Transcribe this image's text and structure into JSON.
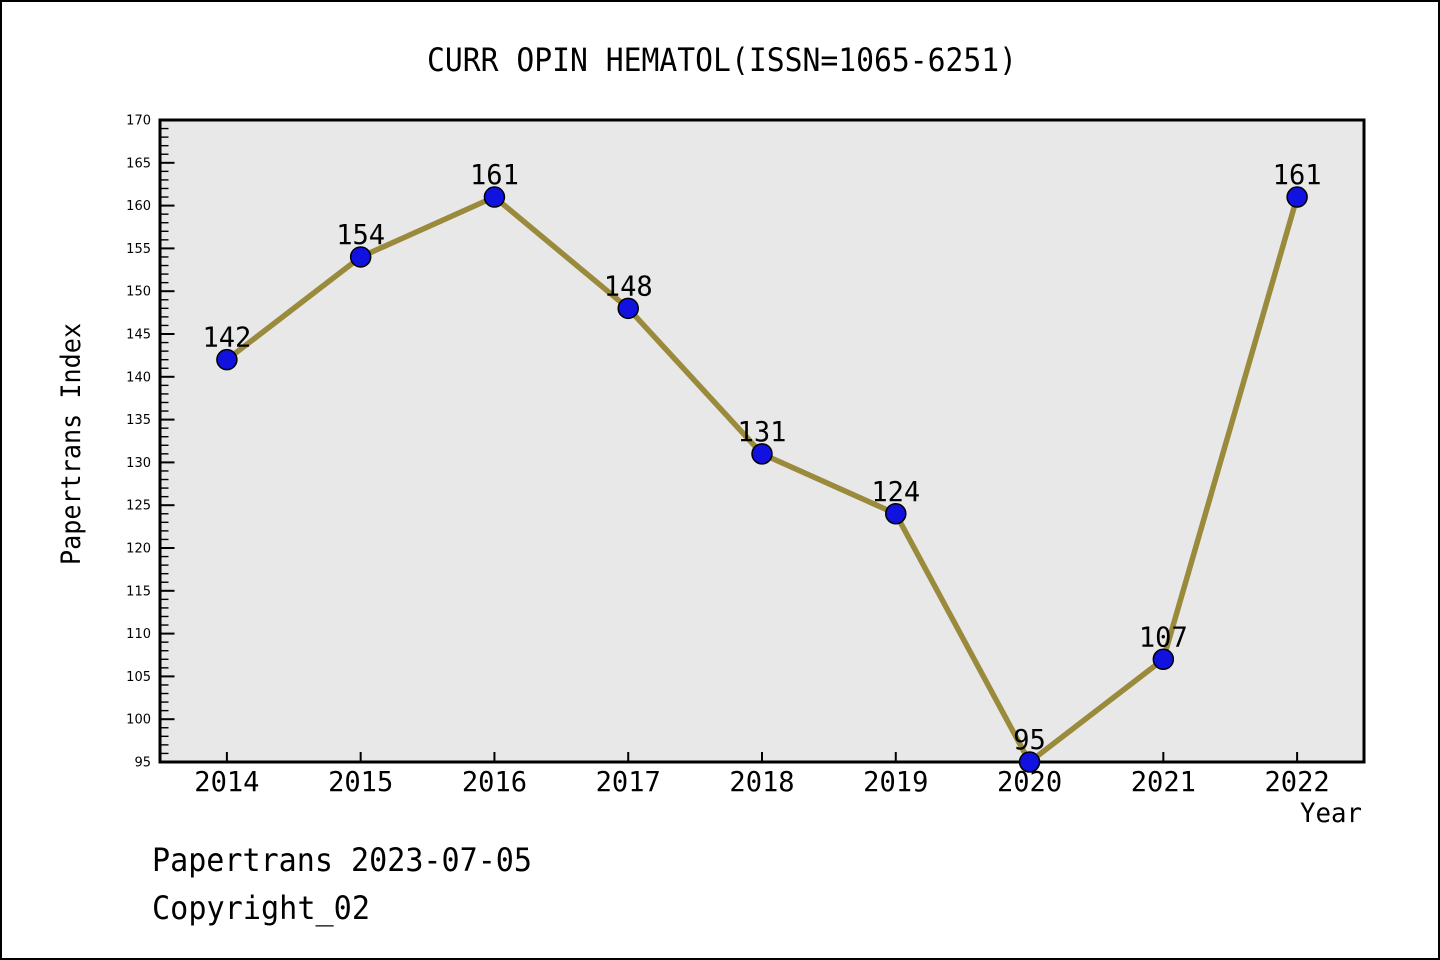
{
  "title": "CURR OPIN HEMATOL(ISSN=1065-6251)",
  "footer": {
    "line1": "Papertrans 2023-07-05",
    "line2": "Copyright_02"
  },
  "chart_data": {
    "type": "line",
    "title": "CURR OPIN HEMATOL(ISSN=1065-6251)",
    "categories": [
      "2014",
      "2015",
      "2016",
      "2017",
      "2018",
      "2019",
      "2020",
      "2021",
      "2022"
    ],
    "values": [
      142,
      154,
      161,
      148,
      131,
      124,
      95,
      107,
      161
    ],
    "point_labels": [
      "142",
      "154",
      "161",
      "148",
      "131",
      "124",
      "95",
      "107",
      "161"
    ],
    "xlabel": "Year",
    "ylabel": "Papertrans Index",
    "ylim": [
      95,
      170
    ],
    "ytick_step": 5,
    "yminor_step": 1,
    "grid": false,
    "legend": "none",
    "colors": {
      "line": "#9a8a3c",
      "marker": "#1111e0",
      "marker_edge": "#000000",
      "plot_bg": "#e8e8e8",
      "page_bg": "#ffffff",
      "text": "#000000",
      "axis": "#000000"
    }
  }
}
